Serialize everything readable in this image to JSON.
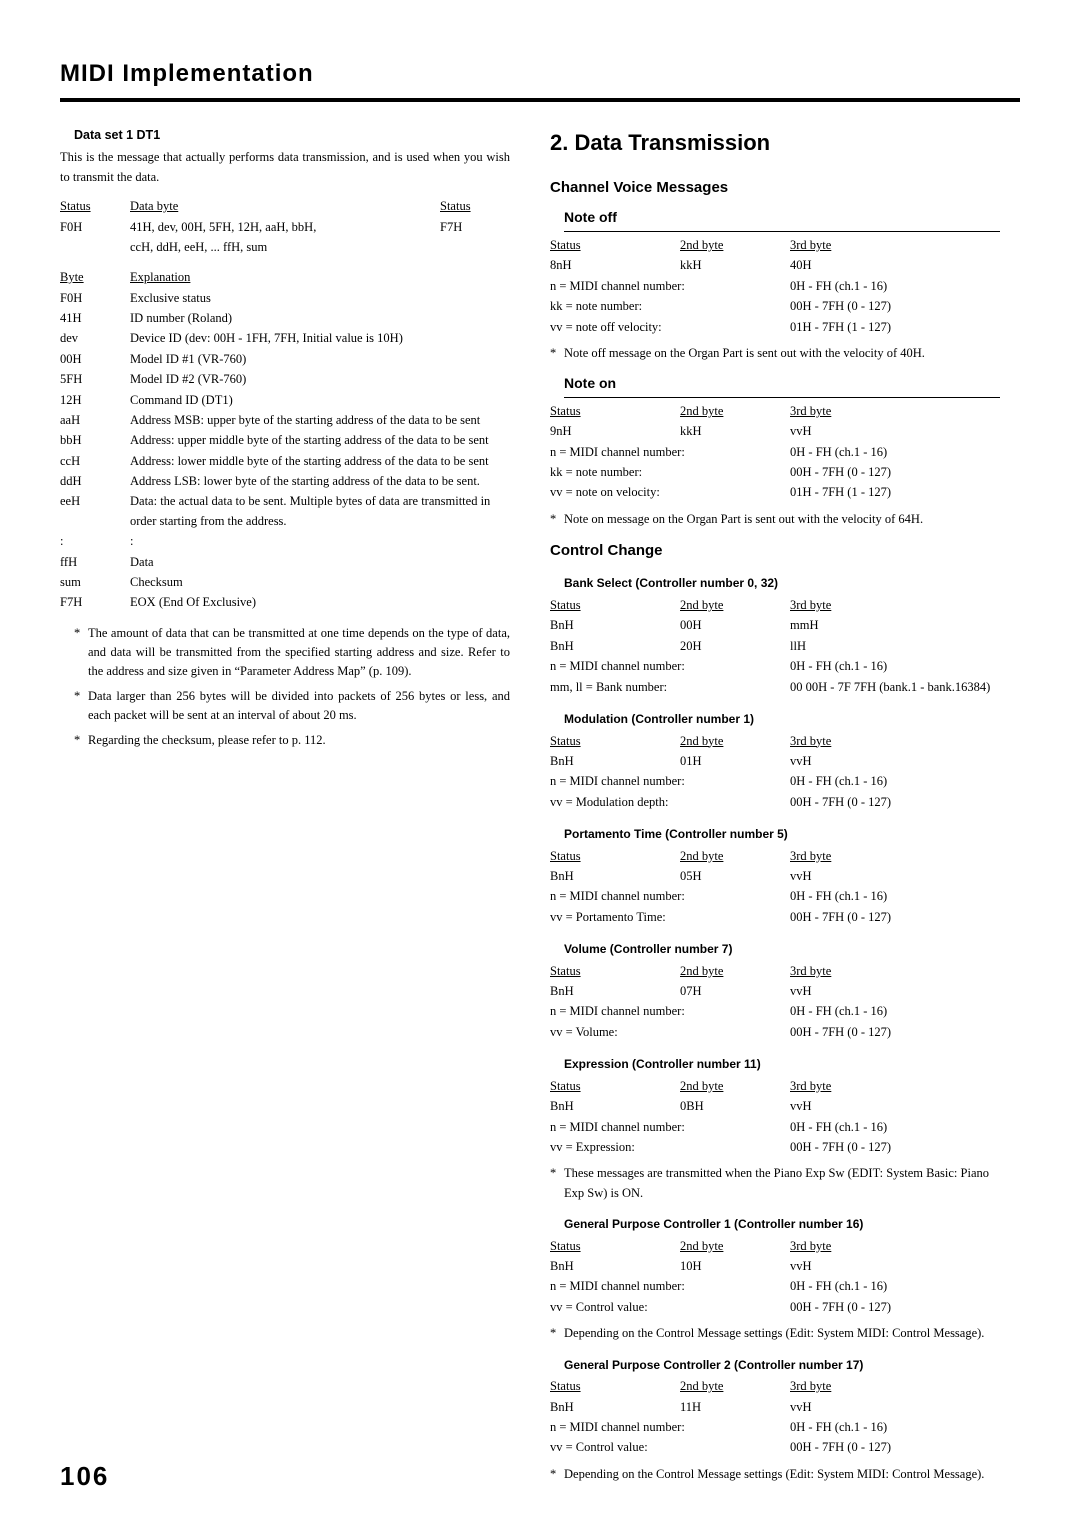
{
  "page": {
    "title": "MIDI Implementation",
    "number": "106"
  },
  "left": {
    "dataset_title": "Data set 1  DT1",
    "intro": "This is the message that actually performs data transmission, and is used when you wish to transmit the data.",
    "table1": {
      "h1": "Status",
      "h2": "Data byte",
      "h3": "Status",
      "r1c1": "F0H",
      "r1c2a": "41H, dev, 00H, 5FH, 12H, aaH, bbH,",
      "r1c2b": "ccH, ddH, eeH, ... ffH, sum",
      "r1c3": "F7H"
    },
    "table2": {
      "h1": "Byte",
      "h2": "Explanation",
      "rows": [
        [
          "F0H",
          "Exclusive status"
        ],
        [
          "41H",
          "ID number (Roland)"
        ],
        [
          "dev",
          "Device ID (dev: 00H - 1FH, 7FH, Initial value is 10H)"
        ],
        [
          "00H",
          "Model ID #1 (VR-760)"
        ],
        [
          "5FH",
          "Model ID #2 (VR-760)"
        ],
        [
          "12H",
          "Command ID (DT1)"
        ],
        [
          "aaH",
          "Address MSB: upper byte of the starting address of the data to be sent"
        ],
        [
          "bbH",
          "Address: upper middle byte of the starting address of the data to be sent"
        ],
        [
          "ccH",
          "Address: lower middle byte of the starting address of the data to be sent"
        ],
        [
          "ddH",
          "Address LSB: lower byte of the starting address of the data to be sent."
        ],
        [
          "eeH",
          "Data: the actual data to be sent. Multiple bytes of data are transmitted in order starting from the address."
        ],
        [
          ":",
          ":"
        ],
        [
          "ffH",
          "Data"
        ],
        [
          "sum",
          "Checksum"
        ],
        [
          "F7H",
          "EOX (End Of Exclusive)"
        ]
      ]
    },
    "notes": [
      "The amount of data that can be transmitted at one time depends on the type of data, and data will be transmitted from the specified starting address and size. Refer to the address and size given in “Parameter Address Map” (p. 109).",
      "Data larger than 256 bytes will be divided into packets of 256 bytes or less, and each packet will be sent at an interval of about 20 ms.",
      "Regarding the checksum, please refer to p. 112."
    ]
  },
  "right": {
    "section_title": "2. Data Transmission",
    "cvm_title": "Channel Voice Messages",
    "noteoff": {
      "title": "Note off",
      "h1": "Status",
      "h2": "2nd byte",
      "h3": "3rd byte",
      "r1c1": "8nH",
      "r1c2": "kkH",
      "r1c3": "40H",
      "p1l": "n = MIDI channel number:",
      "p1r": "0H - FH (ch.1 - 16)",
      "p2l": "kk = note number:",
      "p2r": "00H - 7FH (0 - 127)",
      "p3l": "vv = note off velocity:",
      "p3r": "01H - 7FH (1 - 127)",
      "note": "Note off message on the Organ Part is sent out with the velocity of 40H."
    },
    "noteon": {
      "title": "Note on",
      "h1": "Status",
      "h2": "2nd byte",
      "h3": "3rd byte",
      "r1c1": "9nH",
      "r1c2": "kkH",
      "r1c3": "vvH",
      "p1l": "n = MIDI channel number:",
      "p1r": "0H - FH (ch.1 - 16)",
      "p2l": "kk = note number:",
      "p2r": "00H - 7FH (0 - 127)",
      "p3l": "vv = note on velocity:",
      "p3r": "01H - 7FH (1 - 127)",
      "note": "Note on message on the Organ Part is sent out with the velocity of 64H."
    },
    "cc_title": "Control Change",
    "bank": {
      "title": "Bank Select (Controller number 0, 32)",
      "h1": "Status",
      "h2": "2nd byte",
      "h3": "3rd byte",
      "r1c1": "BnH",
      "r1c2": "00H",
      "r1c3": "mmH",
      "r2c1": "BnH",
      "r2c2": "20H",
      "r2c3": "llH",
      "p1l": "n = MIDI channel number:",
      "p1r": "0H - FH (ch.1 - 16)",
      "p2l": "mm, ll = Bank number:",
      "p2r": "00 00H - 7F 7FH (bank.1 - bank.16384)"
    },
    "mod": {
      "title": "Modulation (Controller number 1)",
      "h1": "Status",
      "h2": "2nd byte",
      "h3": "3rd byte",
      "r1c1": "BnH",
      "r1c2": "01H",
      "r1c3": "vvH",
      "p1l": "n = MIDI channel number:",
      "p1r": "0H - FH (ch.1 - 16)",
      "p2l": "vv = Modulation depth:",
      "p2r": "00H - 7FH (0 - 127)"
    },
    "port": {
      "title": "Portamento Time (Controller number 5)",
      "h1": "Status",
      "h2": "2nd byte",
      "h3": "3rd byte",
      "r1c1": "BnH",
      "r1c2": "05H",
      "r1c3": "vvH",
      "p1l": "n = MIDI channel number:",
      "p1r": "0H - FH (ch.1 - 16)",
      "p2l": "vv = Portamento Time:",
      "p2r": "00H - 7FH (0 - 127)"
    },
    "vol": {
      "title": "Volume (Controller number 7)",
      "h1": "Status",
      "h2": "2nd byte",
      "h3": "3rd byte",
      "r1c1": "BnH",
      "r1c2": "07H",
      "r1c3": "vvH",
      "p1l": "n = MIDI channel number:",
      "p1r": "0H - FH (ch.1 - 16)",
      "p2l": "vv = Volume:",
      "p2r": "00H - 7FH (0 - 127)"
    },
    "exp": {
      "title": "Expression (Controller number 11)",
      "h1": "Status",
      "h2": "2nd byte",
      "h3": "3rd byte",
      "r1c1": "BnH",
      "r1c2": "0BH",
      "r1c3": "vvH",
      "p1l": "n = MIDI channel number:",
      "p1r": "0H - FH (ch.1 - 16)",
      "p2l": "vv = Expression:",
      "p2r": "00H - 7FH (0 - 127)",
      "note": "These messages are transmitted when the Piano Exp Sw (EDIT: System Basic: Piano Exp Sw) is ON."
    },
    "gpc1": {
      "title": "General Purpose Controller 1 (Controller number 16)",
      "h1": "Status",
      "h2": "2nd byte",
      "h3": "3rd byte",
      "r1c1": "BnH",
      "r1c2": "10H",
      "r1c3": "vvH",
      "p1l": "n = MIDI channel number:",
      "p1r": "0H - FH (ch.1 - 16)",
      "p2l": "vv = Control value:",
      "p2r": "00H - 7FH (0 - 127)",
      "note": "Depending on the Control Message settings (Edit: System MIDI: Control Message)."
    },
    "gpc2": {
      "title": "General Purpose Controller 2 (Controller number 17)",
      "h1": "Status",
      "h2": "2nd byte",
      "h3": "3rd byte",
      "r1c1": "BnH",
      "r1c2": "11H",
      "r1c3": "vvH",
      "p1l": "n = MIDI channel number:",
      "p1r": "0H - FH (ch.1 - 16)",
      "p2l": "vv = Control value:",
      "p2r": "00H - 7FH (0 - 127)",
      "note": "Depending on the Control Message settings (Edit: System MIDI: Control Message)."
    }
  }
}
